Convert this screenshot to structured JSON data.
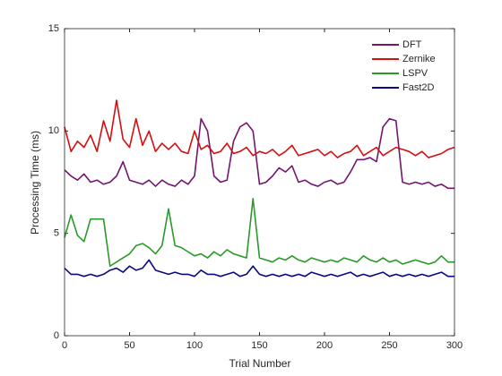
{
  "chart_data": {
    "type": "line",
    "xlabel": "Trial Number",
    "ylabel": "Processing Time (ms)",
    "x": [
      0,
      5,
      10,
      15,
      20,
      25,
      30,
      35,
      40,
      45,
      50,
      55,
      60,
      65,
      70,
      75,
      80,
      85,
      90,
      95,
      100,
      105,
      110,
      115,
      120,
      125,
      130,
      135,
      140,
      145,
      150,
      155,
      160,
      165,
      170,
      175,
      180,
      185,
      190,
      195,
      200,
      205,
      210,
      215,
      220,
      225,
      230,
      235,
      240,
      245,
      250,
      255,
      260,
      265,
      270,
      275,
      280,
      285,
      290,
      295,
      300
    ],
    "series": [
      {
        "name": "DFT",
        "color": "#72166f",
        "values": [
          8.1,
          7.8,
          7.6,
          7.9,
          7.5,
          7.6,
          7.4,
          7.5,
          7.8,
          8.5,
          7.6,
          7.5,
          7.4,
          7.6,
          7.3,
          7.6,
          7.4,
          7.3,
          7.6,
          7.4,
          7.8,
          10.6,
          10.0,
          7.8,
          7.5,
          7.6,
          9.5,
          10.2,
          10.4,
          10.0,
          7.4,
          7.5,
          7.8,
          8.2,
          8.0,
          8.3,
          7.5,
          7.6,
          7.4,
          7.3,
          7.5,
          7.6,
          7.4,
          7.5,
          8.0,
          8.6,
          8.6,
          8.7,
          8.5,
          10.2,
          10.6,
          10.5,
          7.5,
          7.4,
          7.5,
          7.4,
          7.5,
          7.3,
          7.4,
          7.2,
          7.2
        ]
      },
      {
        "name": "Zernike",
        "color": "#d40f0f",
        "values": [
          10.2,
          9.0,
          9.5,
          9.2,
          9.8,
          9.0,
          10.5,
          9.5,
          11.5,
          9.6,
          9.2,
          10.6,
          9.3,
          10.0,
          9.0,
          9.4,
          9.1,
          9.4,
          9.0,
          8.9,
          10.0,
          9.1,
          9.3,
          8.9,
          9.0,
          9.4,
          8.9,
          9.0,
          9.2,
          8.8,
          9.0,
          8.9,
          9.1,
          8.8,
          9.0,
          9.3,
          8.8,
          8.9,
          9.0,
          9.1,
          8.8,
          9.0,
          8.7,
          8.9,
          9.0,
          9.3,
          8.8,
          9.0,
          9.2,
          8.8,
          9.0,
          9.2,
          9.1,
          9.0,
          8.8,
          9.0,
          8.7,
          8.8,
          8.9,
          9.1,
          9.2
        ]
      },
      {
        "name": "LSPV",
        "color": "#2a9a2a",
        "values": [
          4.8,
          5.9,
          4.9,
          4.6,
          5.7,
          5.7,
          5.7,
          3.4,
          3.6,
          3.8,
          4.0,
          4.4,
          4.5,
          4.3,
          4.0,
          4.4,
          6.2,
          4.4,
          4.3,
          4.1,
          3.9,
          4.0,
          3.8,
          4.1,
          3.9,
          4.2,
          4.0,
          3.9,
          3.8,
          6.7,
          3.8,
          3.7,
          3.6,
          3.8,
          3.7,
          3.9,
          3.7,
          3.6,
          3.8,
          3.7,
          3.6,
          3.7,
          3.6,
          3.8,
          3.7,
          3.6,
          3.9,
          3.7,
          3.6,
          3.8,
          3.6,
          3.7,
          3.5,
          3.6,
          3.7,
          3.6,
          3.5,
          3.6,
          3.9,
          3.6,
          3.6
        ]
      },
      {
        "name": "Fast2D",
        "color": "#0b0b80",
        "values": [
          3.3,
          3.0,
          3.0,
          2.9,
          3.0,
          2.9,
          3.0,
          3.2,
          3.3,
          3.1,
          3.4,
          3.2,
          3.3,
          3.7,
          3.2,
          3.1,
          3.0,
          3.1,
          3.0,
          3.0,
          2.9,
          3.2,
          3.0,
          3.0,
          2.9,
          3.0,
          3.1,
          2.9,
          3.0,
          3.4,
          3.0,
          2.9,
          3.0,
          2.9,
          3.0,
          2.9,
          3.0,
          2.9,
          3.1,
          3.0,
          2.9,
          3.0,
          2.9,
          3.0,
          3.1,
          2.9,
          3.0,
          2.9,
          3.0,
          3.1,
          2.9,
          3.0,
          2.9,
          3.0,
          2.9,
          3.0,
          2.9,
          3.0,
          3.1,
          2.9,
          2.9
        ]
      }
    ],
    "xlim": [
      0,
      300
    ],
    "xticks": [
      0,
      50,
      100,
      150,
      200,
      250,
      300
    ],
    "ylim": [
      0,
      15
    ],
    "yticks": [
      0,
      5,
      10,
      15
    ],
    "grid": false,
    "legend": "northeast"
  }
}
